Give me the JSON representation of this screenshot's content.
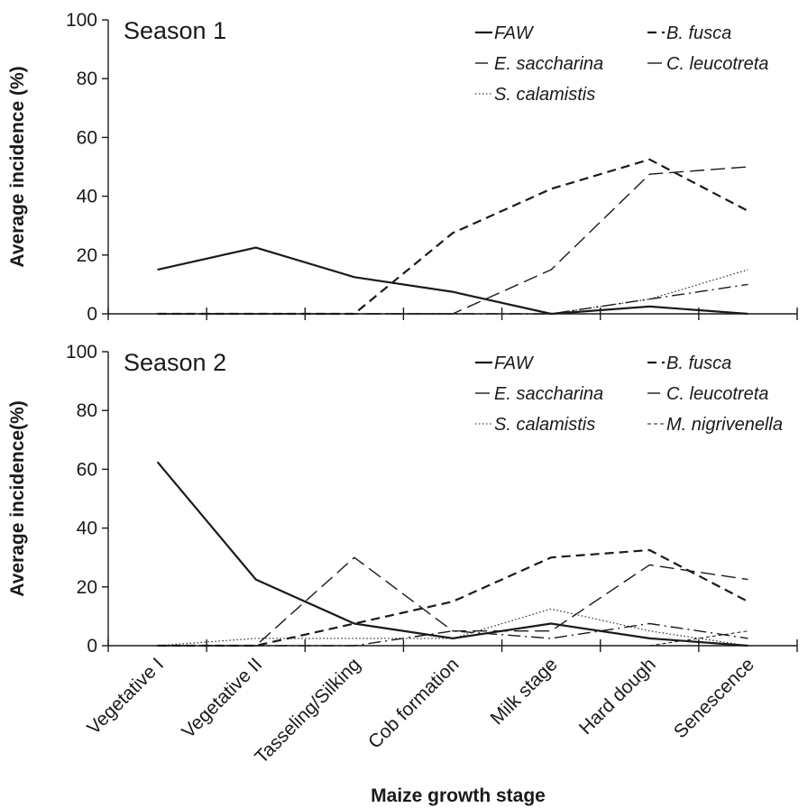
{
  "chart_data": {
    "type": "line",
    "x_label": "Maize growth stage",
    "categories": [
      "Vegetative I",
      "Vegetative II",
      "Tasseling/Silking",
      "Cob formation",
      "Milk stage",
      "Hard dough",
      "Senescence"
    ],
    "panels": [
      {
        "title": "Season 1",
        "y_label": "Average incidence (%)",
        "ylim": [
          0,
          100
        ],
        "yticks": [
          0,
          20,
          40,
          60,
          80,
          100
        ],
        "legend_placement": "top-right",
        "series": [
          {
            "name": "FAW",
            "style": "solid",
            "values": [
              15,
              22.5,
              12.5,
              7.5,
              0,
              2.5,
              0
            ]
          },
          {
            "name": "B. fusca",
            "style": "short-dash",
            "values": [
              0,
              0,
              0,
              27.5,
              42.5,
              52.5,
              35
            ]
          },
          {
            "name": "E. saccharina",
            "style": "dash-dot",
            "values": [
              0,
              0,
              0,
              0,
              0,
              5,
              10
            ]
          },
          {
            "name": "C. leucotreta",
            "style": "long-dash",
            "values": [
              0,
              0,
              0,
              0,
              15,
              47.5,
              50
            ]
          },
          {
            "name": "S. calamistis",
            "style": "dotted",
            "values": [
              0,
              0,
              0,
              0,
              0,
              5,
              15
            ]
          }
        ]
      },
      {
        "title": "Season 2",
        "y_label": "Average incidence(%)",
        "ylim": [
          0,
          100
        ],
        "yticks": [
          0,
          20,
          40,
          60,
          80,
          100
        ],
        "legend_placement": "top-right",
        "series": [
          {
            "name": "FAW",
            "style": "solid",
            "values": [
              62.5,
              22.5,
              7.5,
              2.5,
              7.5,
              2.5,
              0
            ]
          },
          {
            "name": "B. fusca",
            "style": "short-dash",
            "values": [
              0,
              0,
              7.5,
              15,
              30,
              32.5,
              15
            ]
          },
          {
            "name": "E. saccharina",
            "style": "long-dash",
            "values": [
              0,
              0,
              30,
              5,
              5,
              27.5,
              22.5
            ]
          },
          {
            "name": "C. leucotreta",
            "style": "dash-dot",
            "values": [
              0,
              0,
              0,
              5,
              2.5,
              7.5,
              2.5
            ]
          },
          {
            "name": "S. calamistis",
            "style": "dotted",
            "values": [
              0,
              2.5,
              2.5,
              2.5,
              12.5,
              5,
              0
            ]
          },
          {
            "name": "M. nigrivenella",
            "style": "fine-dash",
            "values": [
              0,
              0,
              0,
              0,
              0,
              0,
              5
            ]
          }
        ]
      }
    ]
  }
}
